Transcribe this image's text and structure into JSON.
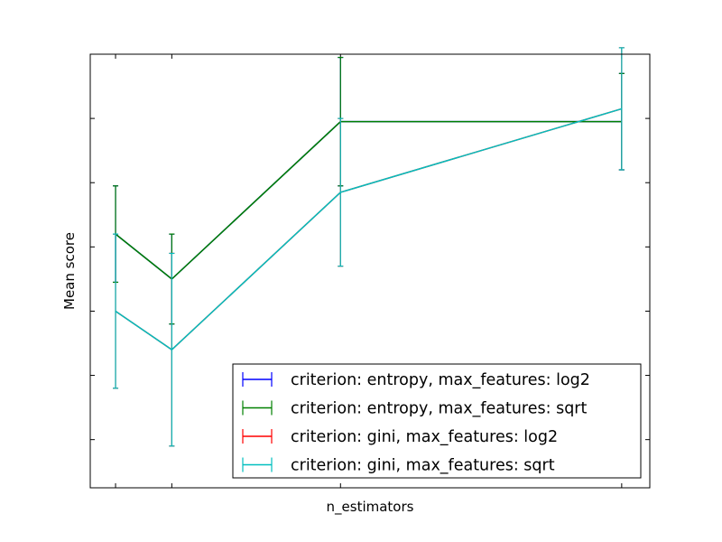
{
  "chart_data": {
    "type": "line",
    "title": "",
    "xlabel": "n_estimators",
    "ylabel": "Mean score",
    "x": [
      1,
      2,
      5,
      10
    ],
    "xlim": [
      0.55,
      10.5
    ],
    "ylim": [
      -3.25,
      3.5
    ],
    "x_tick_labels_shown": false,
    "y_tick_labels_shown": false,
    "grid": false,
    "legend_position": "lower-right",
    "errorbars": true,
    "series": [
      {
        "name": "criterion: entropy, max_features: log2",
        "color": "#0000ff",
        "values": [
          0.7,
          0.0,
          2.45,
          2.45
        ],
        "errors": [
          0.75,
          0.7,
          1.0,
          0.75
        ]
      },
      {
        "name": "criterion: entropy, max_features: sqrt",
        "color": "#008000",
        "values": [
          0.7,
          0.0,
          2.45,
          2.45
        ],
        "errors": [
          0.75,
          0.7,
          1.0,
          0.75
        ]
      },
      {
        "name": "criterion: gini, max_features: log2",
        "color": "#ff0000",
        "values": [
          -0.5,
          -1.1,
          1.35,
          2.65
        ],
        "errors": [
          1.2,
          1.5,
          1.15,
          0.95
        ]
      },
      {
        "name": "criterion: gini, max_features: sqrt",
        "color": "#00bfbf",
        "values": [
          -0.5,
          -1.1,
          1.35,
          2.65
        ],
        "errors": [
          1.2,
          1.5,
          1.15,
          0.95
        ]
      }
    ]
  }
}
